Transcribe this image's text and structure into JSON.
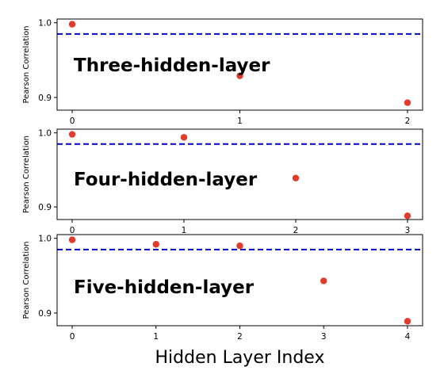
{
  "chart_data": [
    {
      "type": "scatter",
      "title": "Three-hidden-layer",
      "ylabel": "Pearson Correlation",
      "ylim": [
        0.883,
        1.005
      ],
      "xlim": [
        -0.09,
        2.09
      ],
      "yticks": [
        0.9,
        1.0
      ],
      "ytick_labels": [
        "0.9",
        "1.0"
      ],
      "xticks": [
        0,
        1,
        2
      ],
      "xtick_labels": [
        "0",
        "1",
        "2"
      ],
      "x": [
        0,
        1,
        2
      ],
      "y": [
        0.998,
        0.929,
        0.893
      ],
      "reference_line": 0.985,
      "point_color": "#e33a2a",
      "line_color": "#0000cc"
    },
    {
      "type": "scatter",
      "title": "Four-hidden-layer",
      "ylabel": "Pearson Correlation",
      "ylim": [
        0.883,
        1.005
      ],
      "xlim": [
        -0.135,
        3.135
      ],
      "yticks": [
        0.9,
        1.0
      ],
      "ytick_labels": [
        "0.9",
        "1.0"
      ],
      "xticks": [
        0,
        1,
        2,
        3
      ],
      "xtick_labels": [
        "0",
        "1",
        "2",
        "3"
      ],
      "x": [
        0,
        1,
        2,
        3
      ],
      "y": [
        0.998,
        0.994,
        0.939,
        0.888
      ],
      "reference_line": 0.985,
      "point_color": "#e33a2a",
      "line_color": "#0000cc"
    },
    {
      "type": "scatter",
      "title": "Five-hidden-layer",
      "ylabel": "Pearson Correlation",
      "xlabel": "Hidden Layer Index",
      "ylim": [
        0.883,
        1.005
      ],
      "xlim": [
        -0.18,
        4.18
      ],
      "yticks": [
        0.9,
        1.0
      ],
      "ytick_labels": [
        "0.9",
        "1.0"
      ],
      "xticks": [
        0,
        1,
        2,
        3,
        4
      ],
      "xtick_labels": [
        "0",
        "1",
        "2",
        "3",
        "4"
      ],
      "x": [
        0,
        1,
        2,
        3,
        4
      ],
      "y": [
        0.998,
        0.992,
        0.99,
        0.943,
        0.889
      ],
      "reference_line": 0.985,
      "point_color": "#e33a2a",
      "line_color": "#0000cc"
    }
  ]
}
